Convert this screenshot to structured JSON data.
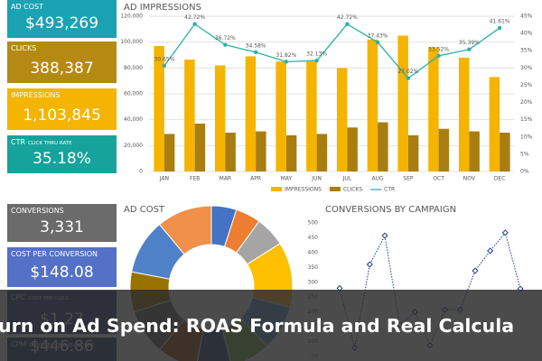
{
  "kpis": [
    {
      "label": "AD COST",
      "value": "$493,269",
      "color": "#1ba2b3"
    },
    {
      "label": "CLICKS",
      "value": "388,387",
      "color": "#b58a12"
    },
    {
      "label": "IMPRESSIONS",
      "value": "1,103,845",
      "color": "#f5b400"
    },
    {
      "label": "CTR",
      "sublabel": "CLICK THRU RATE",
      "value": "35.18%",
      "color": "#16a39b"
    },
    {
      "label": "CONVERSIONS",
      "value": "3,331",
      "color": "#6b6b6b"
    },
    {
      "label": "COST PER CONVERSION",
      "value": "$148.08",
      "color": "#5471c7"
    },
    {
      "label": "CPC",
      "sublabel": "COST PER CLICK",
      "value": "$1.27",
      "color": "#2f3f86"
    },
    {
      "label": "CPM",
      "sublabel": "COST PER THOUSAND IMP",
      "value": "$446.86",
      "color": "#223a70"
    }
  ],
  "banner": {
    "text": "urn on Ad Spend: ROAS Formula and Real Calcula"
  },
  "chart_data": [
    {
      "type": "combo",
      "title": "AD IMPRESSIONS",
      "categories": [
        "JAN",
        "FEB",
        "MAR",
        "APR",
        "MAY",
        "JUN",
        "JUL",
        "AUG",
        "SEP",
        "OCT",
        "NOV",
        "DEC"
      ],
      "series": [
        {
          "name": "IMPRESSIONS",
          "color": "#f5b400",
          "kind": "bar",
          "values": [
            97000,
            86500,
            82000,
            89000,
            85000,
            85000,
            80000,
            102000,
            105000,
            96000,
            88000,
            73000
          ]
        },
        {
          "name": "CLICKS",
          "color": "#a97d10",
          "kind": "bar",
          "values": [
            29000,
            37000,
            30000,
            31000,
            28000,
            29000,
            34000,
            38000,
            28000,
            33000,
            31000,
            30000
          ]
        },
        {
          "name": "CTR",
          "color": "#2ab3a8",
          "kind": "line",
          "axis": "y2",
          "values": [
            30.65,
            42.72,
            36.72,
            34.58,
            31.82,
            32.13,
            42.72,
            37.43,
            27.02,
            33.52,
            35.39,
            41.61
          ],
          "value_labels": [
            "30.65%",
            "42.72%",
            "36.72%",
            "34.58%",
            "31.82%",
            "32.13%",
            "42.72%",
            "37.43%",
            "27.02%",
            "33.52%",
            "35.39%",
            "41.61%"
          ]
        }
      ],
      "ylim": [
        0,
        120000
      ],
      "yticks": [
        0,
        {
          "value": 20000,
          "label": "20,000"
        },
        {
          "value": 40000,
          "label": "40,000"
        },
        {
          "value": 60000,
          "label": "60,000"
        },
        {
          "value": 80000,
          "label": "80,000"
        },
        {
          "value": 100000,
          "label": "100,000"
        },
        {
          "value": 120000,
          "label": "120,000"
        }
      ],
      "y2lim": [
        0,
        45
      ],
      "y2ticks": [
        {
          "value": 0,
          "label": "0%"
        },
        {
          "value": 5,
          "label": "5%"
        },
        {
          "value": 10,
          "label": "10%"
        },
        {
          "value": 15,
          "label": "15%"
        },
        {
          "value": 20,
          "label": "20%"
        },
        {
          "value": 25,
          "label": "25%"
        },
        {
          "value": 30,
          "label": "30%"
        },
        {
          "value": 35,
          "label": "35%"
        },
        {
          "value": 40,
          "label": "40%"
        },
        {
          "value": 45,
          "label": "45%"
        }
      ],
      "grid": true,
      "legend": "bottom"
    },
    {
      "type": "pie",
      "title": "AD COST",
      "donut": true,
      "values": [
        5,
        5,
        6,
        13,
        9,
        8,
        7,
        8,
        9,
        8,
        11,
        11
      ],
      "colors": [
        "#4472c4",
        "#ed7d31",
        "#a5a5a5",
        "#ffc000",
        "#5b9bd5",
        "#70ad47",
        "#264478",
        "#9e480e",
        "#636363",
        "#997300",
        "#4f81c9",
        "#f0904a"
      ]
    },
    {
      "type": "line",
      "title": "CONVERSIONS BY CAMPAIGN",
      "values": [
        280,
        80,
        360,
        457,
        156,
        200,
        87,
        208,
        208,
        339,
        406,
        467,
        278
      ],
      "color": "#1f3a93",
      "ylim": [
        50,
        500
      ],
      "yticks": [
        50,
        100,
        150,
        200,
        250,
        300,
        350,
        400,
        450,
        500
      ],
      "grid": false
    }
  ]
}
